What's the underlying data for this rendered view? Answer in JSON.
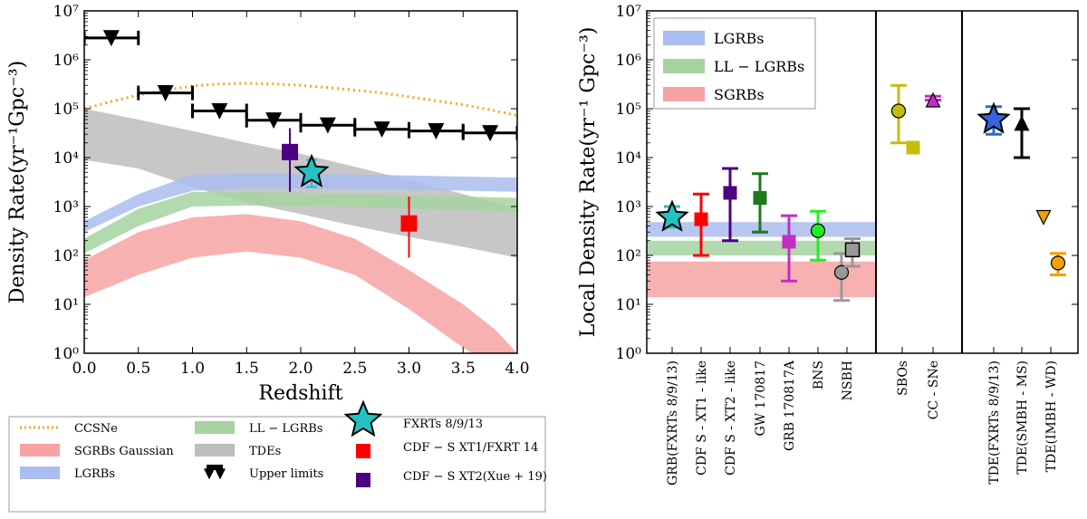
{
  "chart_data": [
    {
      "type": "line",
      "xlabel": "Redshift",
      "ylabel": "Density Rate(yr⁻¹Gpc⁻³)",
      "yscale": "log",
      "xlim": [
        0,
        4
      ],
      "ylim": [
        1,
        10000000
      ],
      "xticks": [
        "0.0",
        "0.5",
        "1.0",
        "1.5",
        "2.0",
        "2.5",
        "3.0",
        "3.5",
        "4.0"
      ],
      "yticks": [
        "10⁰",
        "10¹",
        "10²",
        "10³",
        "10⁴",
        "10⁵",
        "10⁶",
        "10⁷"
      ],
      "series": [
        {
          "name": "CCSNe",
          "kind": "dotted-line",
          "color": "#f5a623",
          "x": [
            0,
            0.25,
            0.5,
            0.75,
            1.0,
            1.25,
            1.5,
            1.75,
            2.0,
            2.25,
            2.5,
            2.75,
            3.0,
            3.25,
            3.5,
            3.75,
            4.0
          ],
          "y": [
            100000,
            140000,
            190000,
            240000,
            290000,
            320000,
            330000,
            320000,
            300000,
            270000,
            240000,
            210000,
            175000,
            145000,
            120000,
            95000,
            72000
          ]
        },
        {
          "name": "TDEs",
          "kind": "band",
          "color": "#bdbdbd",
          "x": [
            0,
            0.5,
            1.0,
            1.5,
            2.0,
            2.5,
            3.0,
            3.5,
            4.0
          ],
          "lower": [
            9000,
            6000,
            2500,
            1200,
            700,
            400,
            240,
            150,
            90
          ],
          "upper": [
            100000,
            60000,
            35000,
            20000,
            12000,
            6500,
            3500,
            1800,
            900
          ]
        },
        {
          "name": "LGRBs",
          "kind": "band",
          "color": "#aabdf0",
          "x": [
            0,
            0.5,
            1.0,
            1.5,
            2.0,
            2.5,
            3.0,
            3.5,
            4.0
          ],
          "lower": [
            300,
            1000,
            2100,
            2300,
            2300,
            2250,
            2200,
            2100,
            2000
          ],
          "upper": [
            500,
            1800,
            4500,
            4700,
            4700,
            4500,
            4300,
            4100,
            3900
          ]
        },
        {
          "name": "LL-LGRBs",
          "kind": "band",
          "color": "#a6d3a0",
          "x": [
            0,
            0.5,
            1.0,
            1.5,
            2.0,
            2.5,
            3.0,
            3.5,
            4.0
          ],
          "lower": [
            110,
            400,
            1000,
            1050,
            1000,
            950,
            900,
            850,
            750
          ],
          "upper": [
            220,
            900,
            2000,
            2000,
            1900,
            1800,
            1700,
            1600,
            1500
          ]
        },
        {
          "name": "SGRBs Gaussian",
          "kind": "band",
          "color": "#f7a3a3",
          "x": [
            0,
            0.5,
            1.0,
            1.5,
            2.0,
            2.5,
            3.0,
            3.5,
            3.8,
            4.0
          ],
          "lower": [
            14,
            40,
            90,
            120,
            90,
            40,
            8,
            1.3,
            0.5,
            0.3
          ],
          "upper": [
            80,
            300,
            600,
            700,
            500,
            220,
            50,
            10,
            3,
            1
          ]
        },
        {
          "name": "Upper limits",
          "kind": "upper-limits",
          "color": "#000000",
          "x": [
            0.25,
            0.75,
            1.25,
            1.75,
            2.25,
            2.75,
            3.25,
            3.75
          ],
          "xerr": 0.25,
          "y": [
            2800000,
            210000,
            90000,
            58000,
            46000,
            38000,
            35000,
            32000
          ]
        }
      ],
      "points": [
        {
          "name": "FXRTs 8/9/13",
          "marker": "star",
          "color": "#22c2c2",
          "x": 2.1,
          "y": 5000,
          "lo": 2500,
          "hi": 9000
        },
        {
          "name": "CDF-S XT1/FXRT 14",
          "marker": "square",
          "color": "#ff0000",
          "x": 3.0,
          "y": 450,
          "lo": 90,
          "hi": 1600
        },
        {
          "name": "CDF-S XT2(Xue+19)",
          "marker": "square",
          "color": "#4b0082",
          "x": 1.9,
          "y": 13000,
          "lo": 2000,
          "hi": 40000
        }
      ],
      "legend": {
        "position": "below",
        "entries": [
          "CCSNe",
          "SGRBs Gaussian",
          "LGRBs",
          "LL-LGRBs",
          "TDEs",
          "Upper limits",
          "FXRTs 8/9/13",
          "CDF-S XT1/FXRT 14",
          "CDF-S XT2(Xue+19)"
        ]
      }
    },
    {
      "type": "scatter",
      "ylabel": "Local Density Rate(yr⁻¹ Gpc⁻³)",
      "yscale": "log",
      "ylim": [
        1,
        10000000
      ],
      "yticks": [
        "10⁰",
        "10¹",
        "10²",
        "10³",
        "10⁴",
        "10⁵",
        "10⁶",
        "10⁷"
      ],
      "bands": [
        {
          "name": "LGRBs",
          "color": "#aabdf0",
          "lower": 240,
          "upper": 480
        },
        {
          "name": "LL-LGRBs",
          "color": "#a6d3a0",
          "lower": 100,
          "upper": 200
        },
        {
          "name": "SGRBs",
          "color": "#f7a3a3",
          "lower": 14,
          "upper": 75
        }
      ],
      "legend": {
        "position": "top-left",
        "entries": [
          "LGRBs",
          "LL-LGRBs",
          "SGRBs"
        ]
      },
      "categories": [
        "GRB(FXRTs 8/9/13)",
        "CDF S - XT1 - like",
        "CDF S - XT2 - like",
        "GW 170817",
        "GRB 170817A",
        "BNS",
        "NSBH",
        "SBOs",
        "CC - SNe",
        "TDE(FXRTs 8/9/13)",
        "TDE(SMBH - MS)",
        "TDE(IMBH - WD)"
      ],
      "points": [
        {
          "category": "GRB(FXRTs 8/9/13)",
          "marker": "star",
          "color": "#22c2c2",
          "y": 600,
          "lo": 380,
          "hi": 1000
        },
        {
          "category": "CDF S - XT1 - like",
          "marker": "square",
          "color": "#ff0000",
          "y": 550,
          "lo": 100,
          "hi": 1800
        },
        {
          "category": "CDF S - XT2 - like",
          "marker": "square",
          "color": "#4b0082",
          "y": 1900,
          "lo": 200,
          "hi": 6000
        },
        {
          "category": "GW 170817",
          "marker": "square",
          "color": "#1b7a1b",
          "y": 1500,
          "lo": 300,
          "hi": 4700
        },
        {
          "category": "GRB 170817A",
          "marker": "square",
          "color": "#c22ec2",
          "y": 190,
          "lo": 30,
          "hi": 650
        },
        {
          "category": "BNS",
          "marker": "circle",
          "color": "#22ee22",
          "y": 320,
          "lo": 80,
          "hi": 800
        },
        {
          "category": "NSBH",
          "marker": "circle",
          "color": "#999999",
          "y": 45,
          "lo": 12,
          "hi": 110
        },
        {
          "category": "NSBH",
          "marker": "square",
          "color": "#999999",
          "y": 130,
          "lo": 60,
          "hi": 220
        },
        {
          "category": "SBOs",
          "marker": "circle",
          "color": "#c4be0a",
          "y": 90000,
          "lo": 20000,
          "hi": 300000
        },
        {
          "category": "SBOs",
          "marker": "square",
          "color": "#c4be0a",
          "y": 16000,
          "lo": null,
          "hi": null
        },
        {
          "category": "CC - SNe",
          "marker": "triangle-up",
          "color": "#c22ec2",
          "y": 150000,
          "lo": null,
          "hi": 180000
        },
        {
          "category": "TDE(FXRTs 8/9/13)",
          "marker": "star",
          "color": "#3366dd",
          "y": 60000,
          "lo": 30000,
          "hi": 110000
        },
        {
          "category": "TDE(SMBH - MS)",
          "marker": "triangle-up",
          "color": "#000000",
          "y": 50000,
          "lo": 10000,
          "hi": 100000
        },
        {
          "category": "TDE(IMBH - WD)",
          "marker": "triangle-down",
          "color": "#f5a000",
          "y": 600,
          "lo": null,
          "hi": null
        },
        {
          "category": "TDE(IMBH - WD)",
          "marker": "circle",
          "color": "#f5a000",
          "y": 70,
          "lo": 40,
          "hi": 110
        }
      ]
    }
  ]
}
